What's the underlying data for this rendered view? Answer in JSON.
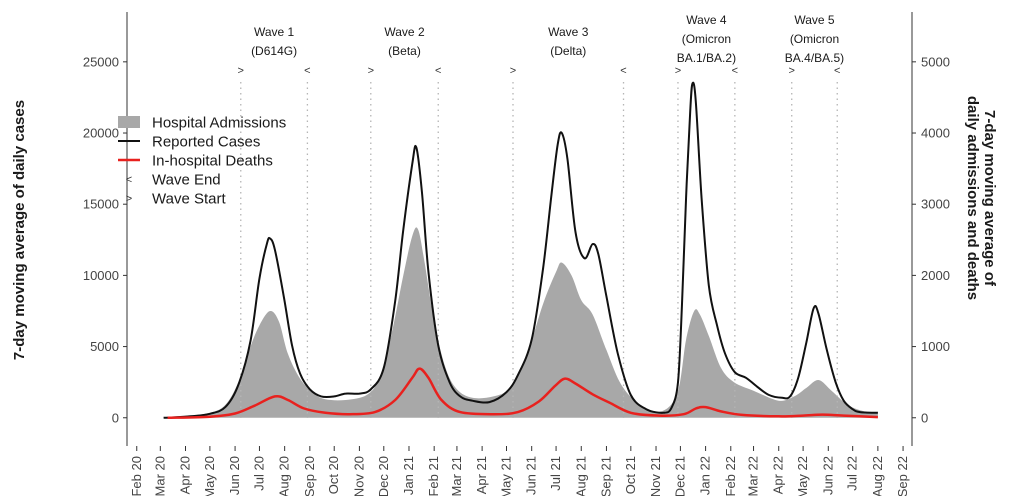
{
  "chart_data": {
    "type": "area",
    "title": "",
    "ylabel": "7-day moving average of daily cases",
    "y2label_lines": [
      "7-day moving  average of",
      "daily admissions and deaths"
    ],
    "ylim": [
      -1000,
      28500
    ],
    "y2lim": [
      -200,
      5700
    ],
    "yticks": [
      0,
      5000,
      10000,
      15000,
      20000,
      25000
    ],
    "y2ticks": [
      0,
      1000,
      2000,
      3000,
      4000,
      5000
    ],
    "xlim": [
      "2020-01-20",
      "2022-09-12"
    ],
    "xticks": [
      {
        "date": "2020-02-01",
        "label": "Feb 20"
      },
      {
        "date": "2020-03-01",
        "label": "Mar 20"
      },
      {
        "date": "2020-04-01",
        "label": "Apr 20"
      },
      {
        "date": "2020-05-01",
        "label": "May 20"
      },
      {
        "date": "2020-06-01",
        "label": "Jun 20"
      },
      {
        "date": "2020-07-01",
        "label": "Jul 20"
      },
      {
        "date": "2020-08-01",
        "label": "Aug 20"
      },
      {
        "date": "2020-09-01",
        "label": "Sep 20"
      },
      {
        "date": "2020-10-01",
        "label": "Oct 20"
      },
      {
        "date": "2020-11-01",
        "label": "Nov 20"
      },
      {
        "date": "2020-12-01",
        "label": "Dec 20"
      },
      {
        "date": "2021-01-01",
        "label": "Jan 21"
      },
      {
        "date": "2021-02-01",
        "label": "Feb 21"
      },
      {
        "date": "2021-03-01",
        "label": "Mar 21"
      },
      {
        "date": "2021-04-01",
        "label": "Apr 21"
      },
      {
        "date": "2021-05-01",
        "label": "May 21"
      },
      {
        "date": "2021-06-01",
        "label": "Jun 21"
      },
      {
        "date": "2021-07-01",
        "label": "Jul 21"
      },
      {
        "date": "2021-08-01",
        "label": "Aug 21"
      },
      {
        "date": "2021-09-01",
        "label": "Sep 21"
      },
      {
        "date": "2021-10-01",
        "label": "Oct 21"
      },
      {
        "date": "2021-11-01",
        "label": "Nov 21"
      },
      {
        "date": "2021-12-01",
        "label": "Dec 21"
      },
      {
        "date": "2022-01-01",
        "label": "Jan 22"
      },
      {
        "date": "2022-02-01",
        "label": "Feb 22"
      },
      {
        "date": "2022-03-01",
        "label": "Mar 22"
      },
      {
        "date": "2022-04-01",
        "label": "Apr 22"
      },
      {
        "date": "2022-05-01",
        "label": "May 22"
      },
      {
        "date": "2022-06-01",
        "label": "Jun 22"
      },
      {
        "date": "2022-07-01",
        "label": "Jul 22"
      },
      {
        "date": "2022-08-01",
        "label": "Aug 22"
      },
      {
        "date": "2022-09-01",
        "label": "Sep 22"
      }
    ],
    "grid": false,
    "legend": {
      "placement": "top-left",
      "entries": [
        {
          "label": "Hospital Admissions",
          "kind": "fill",
          "color": "#a8a8a8"
        },
        {
          "label": "Reported Cases",
          "kind": "line",
          "color": "#111111"
        },
        {
          "label": "In-hospital Deaths",
          "kind": "line",
          "color": "#e8211e"
        },
        {
          "label": "Wave End",
          "kind": "symbol",
          "symbol": "<"
        },
        {
          "label": "Wave Start",
          "kind": "symbol",
          "symbol": ">"
        }
      ]
    },
    "waves": [
      {
        "label_lines": [
          "Wave 1",
          "(D614G)"
        ],
        "start": "2020-06-08",
        "end": "2020-08-29"
      },
      {
        "label_lines": [
          "Wave 2",
          "(Beta)"
        ],
        "start": "2020-11-15",
        "end": "2021-02-06"
      },
      {
        "label_lines": [
          "Wave 3",
          "(Delta)"
        ],
        "start": "2021-05-09",
        "end": "2021-09-22"
      },
      {
        "label_lines": [
          "Wave 4",
          "(Omicron",
          "BA.1/BA.2)"
        ],
        "start": "2021-11-28",
        "end": "2022-02-06"
      },
      {
        "label_lines": [
          "Wave 5",
          "(Omicron",
          "BA.4/BA.5)"
        ],
        "start": "2022-04-17",
        "end": "2022-06-12"
      }
    ],
    "series": [
      {
        "name": "Reported Cases",
        "axis": "left",
        "color": "#111111",
        "points": [
          [
            "2020-03-05",
            0
          ],
          [
            "2020-03-20",
            40
          ],
          [
            "2020-04-10",
            120
          ],
          [
            "2020-05-01",
            280
          ],
          [
            "2020-05-20",
            750
          ],
          [
            "2020-06-05",
            2300
          ],
          [
            "2020-06-20",
            5400
          ],
          [
            "2020-07-01",
            9800
          ],
          [
            "2020-07-10",
            12200
          ],
          [
            "2020-07-14",
            12600
          ],
          [
            "2020-07-20",
            11800
          ],
          [
            "2020-07-31",
            8500
          ],
          [
            "2020-08-10",
            5100
          ],
          [
            "2020-08-20",
            3100
          ],
          [
            "2020-09-01",
            2000
          ],
          [
            "2020-09-15",
            1500
          ],
          [
            "2020-10-01",
            1500
          ],
          [
            "2020-10-15",
            1700
          ],
          [
            "2020-11-01",
            1700
          ],
          [
            "2020-11-15",
            2000
          ],
          [
            "2020-12-01",
            3500
          ],
          [
            "2020-12-15",
            8200
          ],
          [
            "2020-12-25",
            13200
          ],
          [
            "2021-01-05",
            17800
          ],
          [
            "2021-01-10",
            19000
          ],
          [
            "2021-01-17",
            15800
          ],
          [
            "2021-01-25",
            10200
          ],
          [
            "2021-02-06",
            5100
          ],
          [
            "2021-02-20",
            2500
          ],
          [
            "2021-03-05",
            1500
          ],
          [
            "2021-03-20",
            1200
          ],
          [
            "2021-04-10",
            1100
          ],
          [
            "2021-05-01",
            1800
          ],
          [
            "2021-05-15",
            3000
          ],
          [
            "2021-06-01",
            5500
          ],
          [
            "2021-06-15",
            10500
          ],
          [
            "2021-06-25",
            15500
          ],
          [
            "2021-07-03",
            19200
          ],
          [
            "2021-07-08",
            20000
          ],
          [
            "2021-07-15",
            18200
          ],
          [
            "2021-07-25",
            13000
          ],
          [
            "2021-08-05",
            11200
          ],
          [
            "2021-08-15",
            12200
          ],
          [
            "2021-08-22",
            11500
          ],
          [
            "2021-09-01",
            8500
          ],
          [
            "2021-09-15",
            4500
          ],
          [
            "2021-10-01",
            1600
          ],
          [
            "2021-10-20",
            600
          ],
          [
            "2021-11-10",
            350
          ],
          [
            "2021-11-20",
            700
          ],
          [
            "2021-11-28",
            2500
          ],
          [
            "2021-12-03",
            8000
          ],
          [
            "2021-12-08",
            15500
          ],
          [
            "2021-12-13",
            21500
          ],
          [
            "2021-12-16",
            23500
          ],
          [
            "2021-12-20",
            22200
          ],
          [
            "2021-12-27",
            15500
          ],
          [
            "2022-01-05",
            9300
          ],
          [
            "2022-01-15",
            6500
          ],
          [
            "2022-01-25",
            4500
          ],
          [
            "2022-02-06",
            3200
          ],
          [
            "2022-02-20",
            2800
          ],
          [
            "2022-03-05",
            2200
          ],
          [
            "2022-03-20",
            1600
          ],
          [
            "2022-04-05",
            1400
          ],
          [
            "2022-04-15",
            1500
          ],
          [
            "2022-04-25",
            2800
          ],
          [
            "2022-05-05",
            5300
          ],
          [
            "2022-05-14",
            7700
          ],
          [
            "2022-05-20",
            7300
          ],
          [
            "2022-05-30",
            4800
          ],
          [
            "2022-06-10",
            2500
          ],
          [
            "2022-06-20",
            1200
          ],
          [
            "2022-07-01",
            600
          ],
          [
            "2022-07-10",
            400
          ],
          [
            "2022-08-01",
            350
          ]
        ]
      },
      {
        "name": "Hospital Admissions",
        "axis": "right",
        "color": "#a8a8a8",
        "points": [
          [
            "2020-03-10",
            0
          ],
          [
            "2020-04-01",
            20
          ],
          [
            "2020-05-01",
            70
          ],
          [
            "2020-05-20",
            180
          ],
          [
            "2020-06-05",
            500
          ],
          [
            "2020-06-20",
            1000
          ],
          [
            "2020-07-01",
            1300
          ],
          [
            "2020-07-14",
            1500
          ],
          [
            "2020-07-25",
            1350
          ],
          [
            "2020-08-05",
            900
          ],
          [
            "2020-08-20",
            550
          ],
          [
            "2020-09-05",
            350
          ],
          [
            "2020-09-20",
            260
          ],
          [
            "2020-10-15",
            250
          ],
          [
            "2020-11-10",
            320
          ],
          [
            "2020-11-25",
            550
          ],
          [
            "2020-12-10",
            1150
          ],
          [
            "2020-12-25",
            2000
          ],
          [
            "2021-01-05",
            2550
          ],
          [
            "2021-01-12",
            2650
          ],
          [
            "2021-01-20",
            2200
          ],
          [
            "2021-02-01",
            1350
          ],
          [
            "2021-02-15",
            700
          ],
          [
            "2021-03-01",
            400
          ],
          [
            "2021-03-20",
            280
          ],
          [
            "2021-04-15",
            300
          ],
          [
            "2021-05-05",
            420
          ],
          [
            "2021-05-25",
            850
          ],
          [
            "2021-06-15",
            1600
          ],
          [
            "2021-07-01",
            2050
          ],
          [
            "2021-07-08",
            2180
          ],
          [
            "2021-07-20",
            2000
          ],
          [
            "2021-08-01",
            1650
          ],
          [
            "2021-08-15",
            1450
          ],
          [
            "2021-09-01",
            950
          ],
          [
            "2021-09-20",
            450
          ],
          [
            "2021-10-15",
            160
          ],
          [
            "2021-11-10",
            100
          ],
          [
            "2021-11-28",
            380
          ],
          [
            "2021-12-08",
            1100
          ],
          [
            "2021-12-18",
            1500
          ],
          [
            "2021-12-25",
            1450
          ],
          [
            "2022-01-05",
            1150
          ],
          [
            "2022-01-20",
            700
          ],
          [
            "2022-02-05",
            500
          ],
          [
            "2022-03-01",
            380
          ],
          [
            "2022-04-01",
            240
          ],
          [
            "2022-04-20",
            300
          ],
          [
            "2022-05-05",
            420
          ],
          [
            "2022-05-20",
            530
          ],
          [
            "2022-06-05",
            380
          ],
          [
            "2022-06-25",
            180
          ],
          [
            "2022-07-15",
            90
          ],
          [
            "2022-08-01",
            60
          ]
        ]
      },
      {
        "name": "In-hospital Deaths",
        "axis": "right",
        "color": "#e8211e",
        "points": [
          [
            "2020-03-10",
            0
          ],
          [
            "2020-05-01",
            15
          ],
          [
            "2020-06-01",
            60
          ],
          [
            "2020-06-25",
            170
          ],
          [
            "2020-07-20",
            300
          ],
          [
            "2020-08-05",
            250
          ],
          [
            "2020-08-25",
            130
          ],
          [
            "2020-09-20",
            70
          ],
          [
            "2020-10-20",
            50
          ],
          [
            "2020-11-20",
            80
          ],
          [
            "2020-12-15",
            250
          ],
          [
            "2021-01-05",
            560
          ],
          [
            "2021-01-14",
            690
          ],
          [
            "2021-01-25",
            560
          ],
          [
            "2021-02-10",
            250
          ],
          [
            "2021-03-05",
            80
          ],
          [
            "2021-04-15",
            50
          ],
          [
            "2021-05-15",
            80
          ],
          [
            "2021-06-10",
            230
          ],
          [
            "2021-06-30",
            450
          ],
          [
            "2021-07-12",
            550
          ],
          [
            "2021-07-25",
            480
          ],
          [
            "2021-08-15",
            330
          ],
          [
            "2021-09-05",
            210
          ],
          [
            "2021-10-01",
            70
          ],
          [
            "2021-11-05",
            30
          ],
          [
            "2021-12-05",
            50
          ],
          [
            "2021-12-20",
            130
          ],
          [
            "2022-01-01",
            150
          ],
          [
            "2022-01-20",
            90
          ],
          [
            "2022-02-15",
            40
          ],
          [
            "2022-04-01",
            20
          ],
          [
            "2022-05-01",
            30
          ],
          [
            "2022-05-25",
            45
          ],
          [
            "2022-06-20",
            30
          ],
          [
            "2022-08-01",
            10
          ]
        ]
      }
    ]
  }
}
